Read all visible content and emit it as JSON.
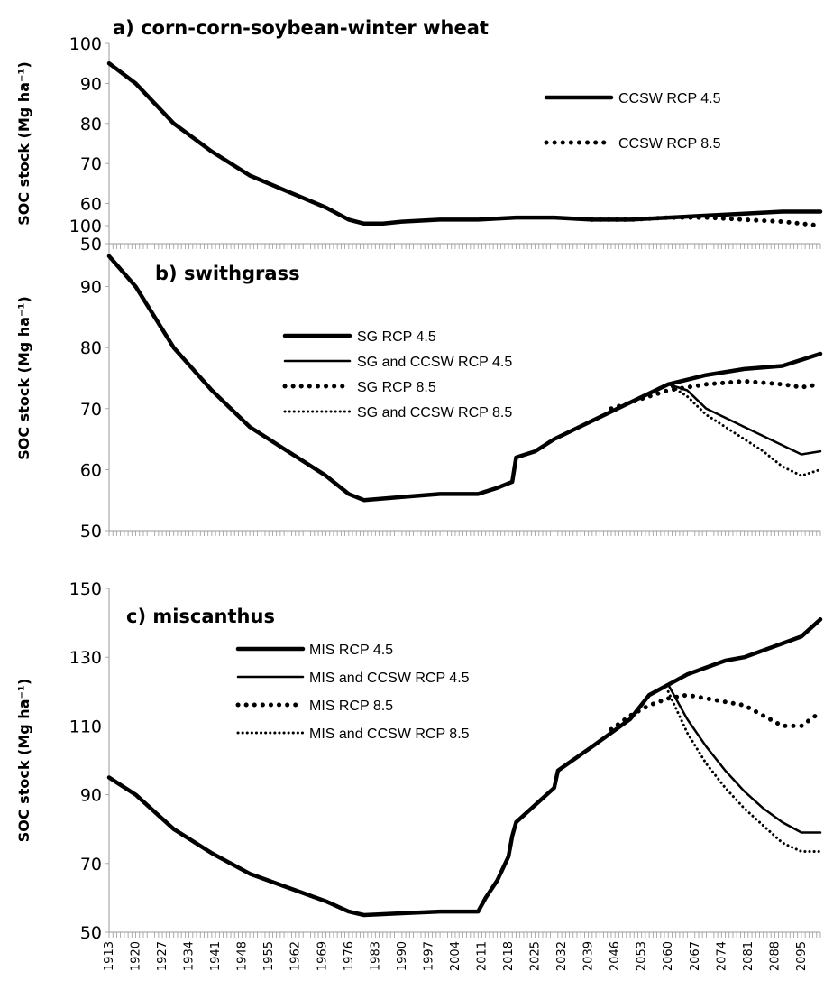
{
  "chart_data": [
    {
      "type": "line",
      "title": "a) corn-corn-soybean-winter wheat",
      "ylabel": "SOC stock (Mg ha⁻¹)",
      "ylim": [
        50,
        100
      ],
      "yticks": [
        50,
        60,
        70,
        80,
        90,
        100
      ],
      "x_range": [
        1913,
        2100
      ],
      "legend_position": "top-right",
      "series": [
        {
          "name": "CCSW RCP 4.5",
          "style": "solid-thick",
          "x": [
            1913,
            1920,
            1930,
            1940,
            1950,
            1960,
            1970,
            1976,
            1980,
            1985,
            1990,
            2000,
            2010,
            2020,
            2030,
            2040,
            2050,
            2060,
            2070,
            2080,
            2090,
            2100
          ],
          "y": [
            95,
            90,
            80,
            73,
            67,
            63,
            59,
            56,
            55,
            55,
            55.5,
            56,
            56,
            56.5,
            56.5,
            56,
            56,
            56.5,
            57,
            57.5,
            58,
            58
          ]
        },
        {
          "name": "CCSW RCP 8.5",
          "style": "dotted-thick",
          "x": [
            2040,
            2050,
            2060,
            2070,
            2080,
            2090,
            2095,
            2100
          ],
          "y": [
            56,
            56,
            56.5,
            56.5,
            56,
            55.5,
            55,
            54.5
          ]
        }
      ]
    },
    {
      "type": "line",
      "title": "b) swithgrass",
      "ylabel": "SOC stock (Mg ha⁻¹)",
      "ylim": [
        50,
        100
      ],
      "yticks": [
        50,
        60,
        70,
        80,
        90,
        100
      ],
      "x_range": [
        1913,
        2100
      ],
      "legend_position": "top-center",
      "series": [
        {
          "name": "SG RCP 4.5",
          "style": "solid-thick",
          "x": [
            1913,
            1920,
            1930,
            1940,
            1950,
            1960,
            1970,
            1976,
            1980,
            1990,
            2000,
            2010,
            2015,
            2019,
            2020,
            2025,
            2030,
            2040,
            2050,
            2060,
            2070,
            2080,
            2090,
            2100
          ],
          "y": [
            95,
            90,
            80,
            73,
            67,
            63,
            59,
            56,
            55,
            55.5,
            56,
            56,
            57,
            58,
            62,
            63,
            65,
            68,
            71,
            74,
            75.5,
            76.5,
            77,
            79
          ]
        },
        {
          "name": "SG and CCSW RCP 4.5",
          "style": "solid-thin",
          "x": [
            2060,
            2065,
            2070,
            2075,
            2080,
            2085,
            2090,
            2095,
            2100
          ],
          "y": [
            74,
            73,
            70,
            68.5,
            67,
            65.5,
            64,
            62.5,
            63
          ]
        },
        {
          "name": "SG RCP 8.5",
          "style": "dotted-thick",
          "x": [
            2045,
            2050,
            2060,
            2070,
            2080,
            2090,
            2095,
            2100
          ],
          "y": [
            70,
            71,
            73,
            74,
            74.5,
            74,
            73.5,
            74
          ]
        },
        {
          "name": "SG and  CCSW RCP 8.5",
          "style": "dotted-thin",
          "x": [
            2060,
            2065,
            2070,
            2075,
            2080,
            2085,
            2090,
            2095,
            2100
          ],
          "y": [
            74,
            72,
            69,
            67,
            65,
            63,
            60.5,
            59,
            60
          ]
        }
      ]
    },
    {
      "type": "line",
      "title": "c) miscanthus",
      "ylabel": "SOC stock (Mg ha⁻¹)",
      "ylim": [
        50,
        150
      ],
      "yticks": [
        50,
        70,
        90,
        110,
        130,
        150
      ],
      "x_range": [
        1913,
        2100
      ],
      "xticks": [
        1913,
        1920,
        1927,
        1934,
        1941,
        1948,
        1955,
        1962,
        1969,
        1976,
        1983,
        1990,
        1997,
        2004,
        2011,
        2018,
        2025,
        2032,
        2039,
        2046,
        2053,
        2060,
        2067,
        2074,
        2081,
        2088,
        2095
      ],
      "legend_position": "top-center",
      "series": [
        {
          "name": "MIS RCP 4.5",
          "style": "solid-thick",
          "x": [
            1913,
            1920,
            1930,
            1940,
            1950,
            1960,
            1970,
            1976,
            1980,
            1990,
            2000,
            2010,
            2012,
            2015,
            2018,
            2019,
            2020,
            2025,
            2030,
            2031,
            2040,
            2050,
            2055,
            2060,
            2065,
            2070,
            2075,
            2080,
            2085,
            2090,
            2095,
            2100
          ],
          "y": [
            95,
            90,
            80,
            73,
            67,
            63,
            59,
            56,
            55,
            55.5,
            56,
            56,
            60,
            65,
            72,
            78,
            82,
            87,
            92,
            97,
            104,
            112,
            119,
            122,
            125,
            127,
            129,
            130,
            132,
            134,
            136,
            141
          ]
        },
        {
          "name": "MIS and CCSW RCP 4.5",
          "style": "solid-thin",
          "x": [
            2060,
            2065,
            2070,
            2075,
            2080,
            2085,
            2090,
            2095,
            2100
          ],
          "y": [
            122,
            112,
            104,
            97,
            91,
            86,
            82,
            79,
            79
          ]
        },
        {
          "name": "MIS RCP 8.5",
          "style": "dotted-thick",
          "x": [
            2045,
            2050,
            2055,
            2060,
            2065,
            2070,
            2075,
            2080,
            2085,
            2090,
            2095,
            2100
          ],
          "y": [
            109,
            113,
            116,
            118,
            119,
            118,
            117,
            116,
            113,
            110,
            110,
            114
          ]
        },
        {
          "name": "MIS and CCSW RCP 8.5",
          "style": "dotted-thin",
          "x": [
            2060,
            2065,
            2070,
            2075,
            2080,
            2085,
            2090,
            2095,
            2100
          ],
          "y": [
            120,
            108,
            99,
            92,
            86,
            81,
            76,
            73.5,
            73.5
          ]
        }
      ]
    }
  ]
}
